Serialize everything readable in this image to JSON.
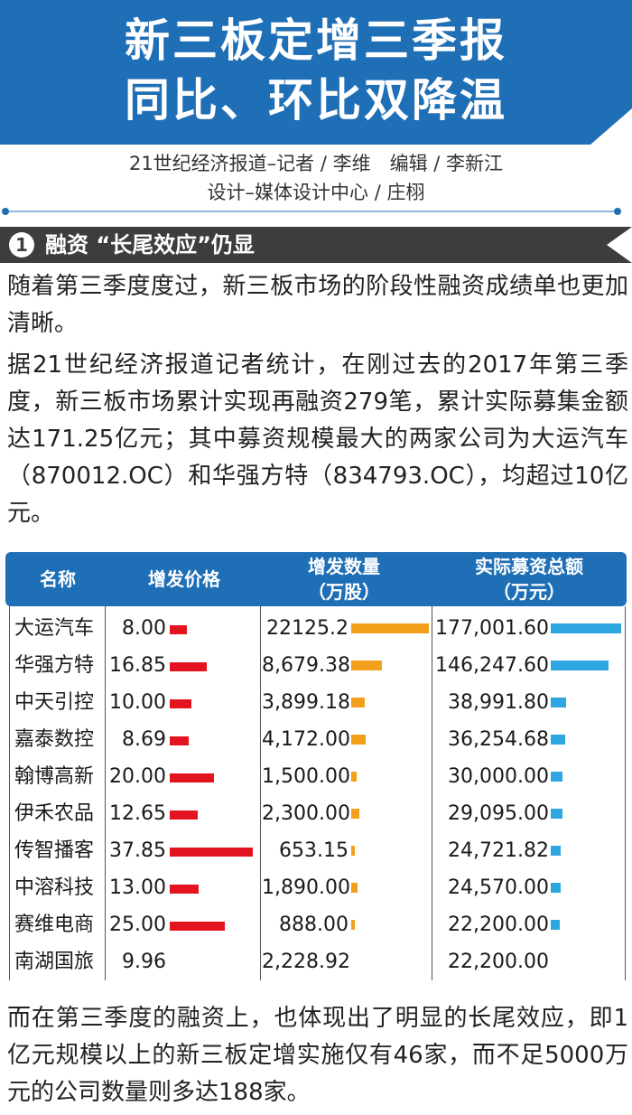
{
  "title": {
    "line1": "新三板定增三季报",
    "line2": "同比、环比双降温"
  },
  "byline": {
    "line1": "21世纪经济报道–记者 / 李维　编辑 / 李新江",
    "line2": "设计–媒体设计中心 / 庄栩"
  },
  "colors": {
    "header_blue": "#1f6fb6",
    "section_dark": "#3d3d3d",
    "price_bar": "#e3141f",
    "shares_bar": "#f2a01c",
    "amount_bar": "#2ea7e0"
  },
  "section": {
    "number": "1",
    "title": "融资 “长尾效应”仍显"
  },
  "paragraphs": {
    "p1": "随着第三季度度过，新三板市场的阶段性融资成绩单也更加清晰。",
    "p2": "据21世纪经济报道记者统计，在刚过去的2017年第三季度，新三板市场累计实现再融资279笔，累计实际募集金额达171.25亿元；其中募资规模最大的两家公司为大运汽车（870012.OC）和华强方特（834793.OC），均超过10亿元。",
    "p3": "而在第三季度的融资上，也体现出了明显的长尾效应，即1亿元规模以上的新三板定增实施仅有46家，而不足5000万元的公司数量则多达188家。"
  },
  "table": {
    "headers": {
      "name": "名称",
      "price": "增发价格",
      "shares_line1": "增发数量",
      "shares_line2": "（万股）",
      "amount_line1": "实际募资总额",
      "amount_line2": "（万元）"
    },
    "rows": [
      {
        "name": "大运汽车",
        "price": "8.00",
        "shares": "22125.2",
        "amount": "177,001.60"
      },
      {
        "name": "华强方特",
        "price": "16.85",
        "shares": "8,679.38",
        "amount": "146,247.60"
      },
      {
        "name": "中天引控",
        "price": "10.00",
        "shares": "3,899.18",
        "amount": "38,991.80"
      },
      {
        "name": "嘉泰数控",
        "price": "8.69",
        "shares": "4,172.00",
        "amount": "36,254.68"
      },
      {
        "name": "翰博高新",
        "price": "20.00",
        "shares": "1,500.00",
        "amount": "30,000.00"
      },
      {
        "name": "伊禾农品",
        "price": "12.65",
        "shares": "2,300.00",
        "amount": "29,095.00"
      },
      {
        "name": "传智播客",
        "price": "37.85",
        "shares": "653.15",
        "amount": "24,721.82"
      },
      {
        "name": "中溶科技",
        "price": "13.00",
        "shares": "1,890.00",
        "amount": "24,570.00"
      },
      {
        "name": "赛维电商",
        "price": "25.00",
        "shares": "888.00",
        "amount": "22,200.00"
      },
      {
        "name": "南湖国旅",
        "price": "9.96",
        "shares": "2,228.92",
        "amount": "22,200.00"
      }
    ]
  }
}
